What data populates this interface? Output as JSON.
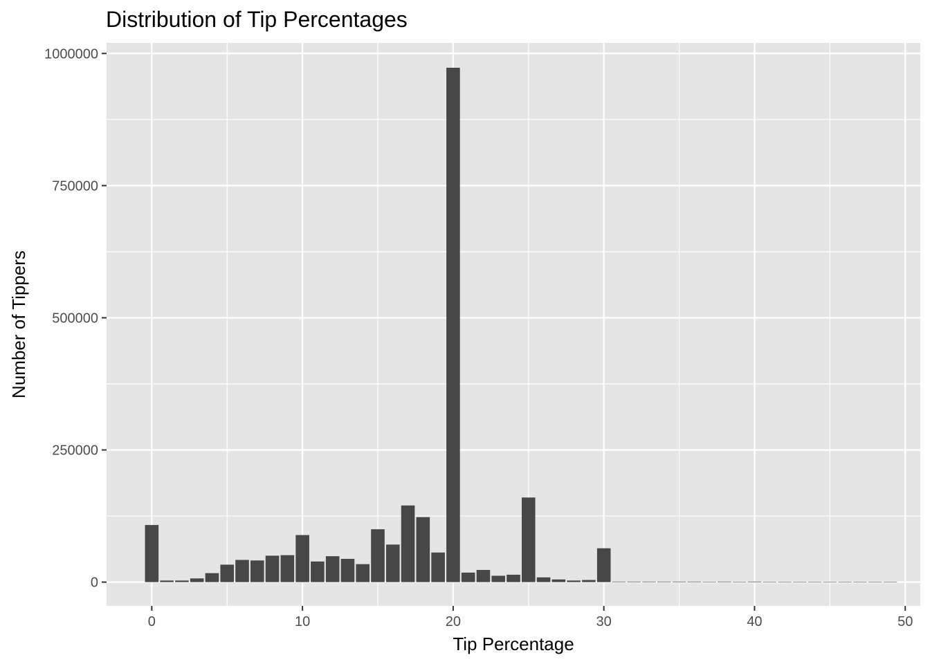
{
  "chart_data": {
    "type": "bar",
    "title": "Distribution of Tip Percentages",
    "xlabel": "Tip Percentage",
    "ylabel": "Number of Tippers",
    "x": [
      0,
      1,
      2,
      3,
      4,
      5,
      6,
      7,
      8,
      9,
      10,
      11,
      12,
      13,
      14,
      15,
      16,
      17,
      18,
      19,
      20,
      21,
      22,
      23,
      24,
      25,
      26,
      27,
      28,
      29,
      30,
      31,
      32,
      33,
      34,
      35,
      36,
      37,
      38,
      39,
      40,
      41,
      42,
      43,
      44,
      45,
      46,
      47,
      48,
      49
    ],
    "values": [
      108000,
      3000,
      3000,
      7000,
      17000,
      33000,
      42000,
      41000,
      50000,
      51000,
      89000,
      39000,
      49000,
      44000,
      34000,
      100000,
      71000,
      145000,
      123000,
      56000,
      973000,
      18000,
      23000,
      12000,
      14000,
      160000,
      9000,
      5000,
      3000,
      4000,
      64000,
      1000,
      1000,
      1000,
      1000,
      1000,
      1000,
      500,
      1000,
      500,
      1000,
      500,
      500,
      500,
      500,
      500,
      300,
      300,
      300,
      300
    ],
    "xlim": [
      -3,
      51
    ],
    "ylim": [
      -45000,
      1020000
    ],
    "x_ticks": [
      0,
      10,
      20,
      30,
      40,
      50
    ],
    "x_tick_labels": [
      "0",
      "10",
      "20",
      "30",
      "40",
      "50"
    ],
    "y_ticks": [
      0,
      250000,
      500000,
      750000,
      1000000
    ],
    "y_tick_labels": [
      "0",
      "250000",
      "500000",
      "750000",
      "1000000"
    ],
    "grid": true,
    "colors": {
      "bar": "#474747",
      "panel": "#e5e5e5",
      "grid_major": "#ffffff",
      "tick": "#333333"
    }
  }
}
